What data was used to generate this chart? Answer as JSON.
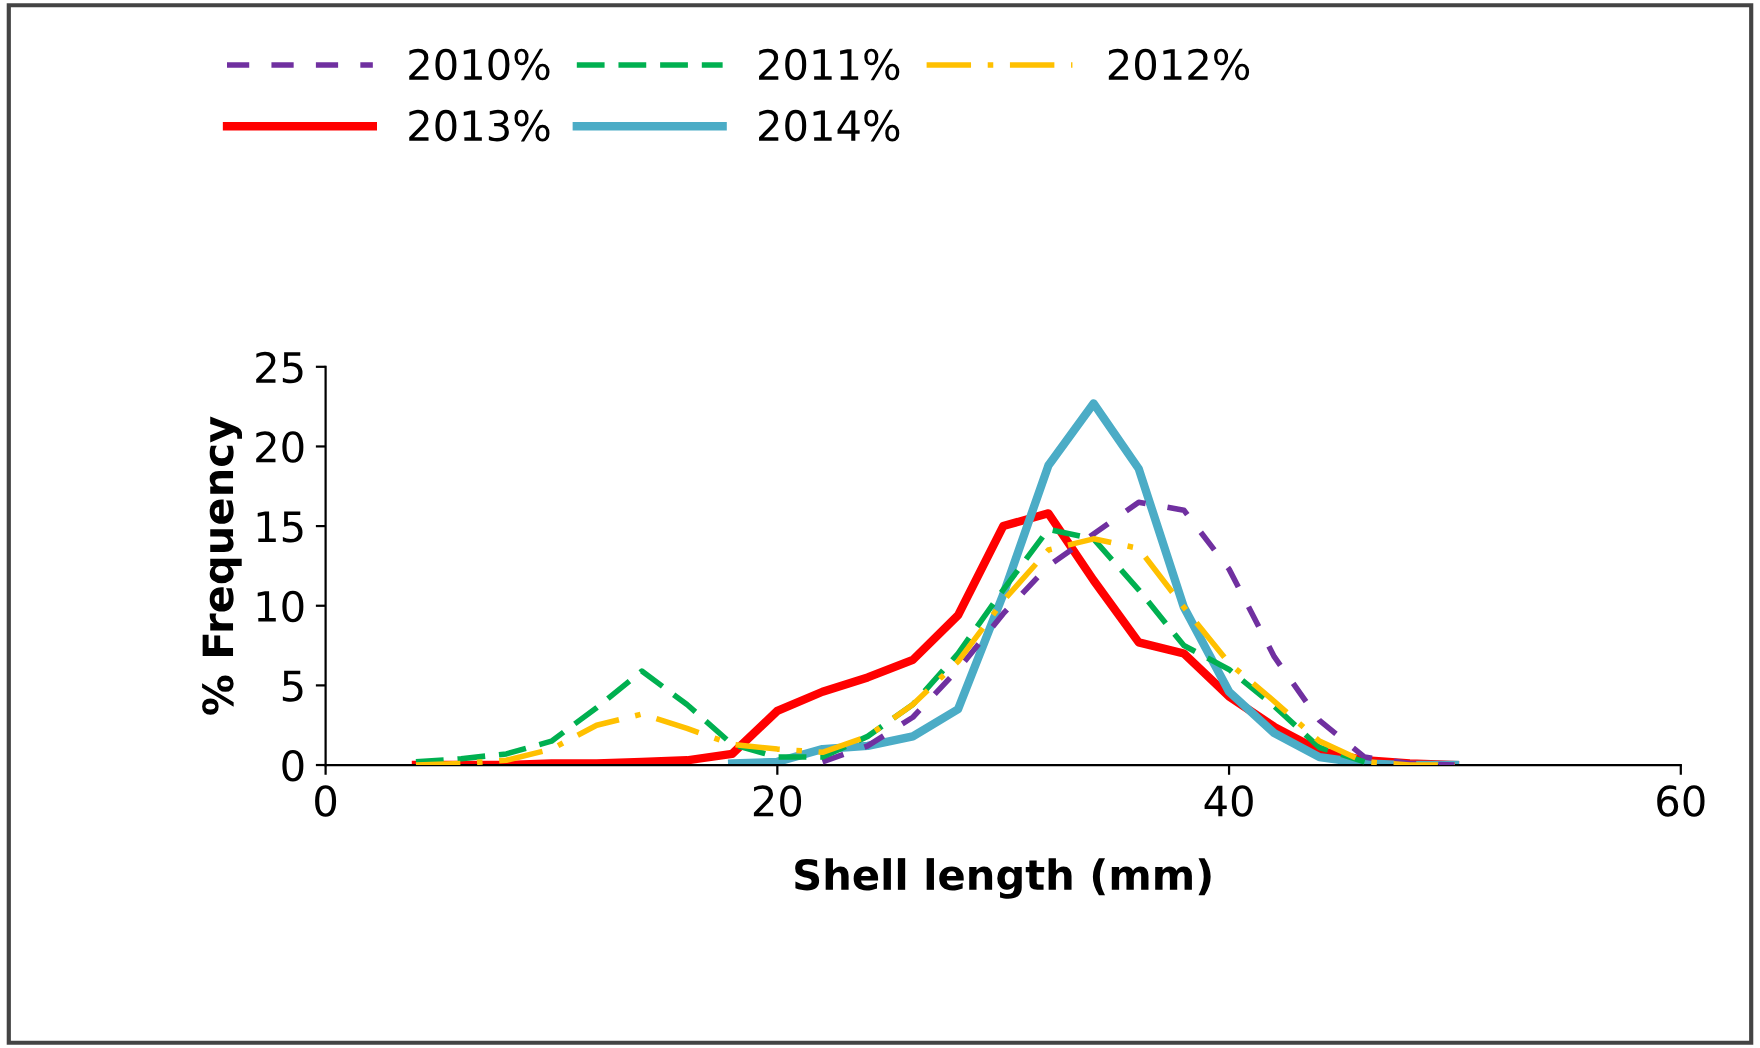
{
  "chart_data": {
    "type": "line",
    "xlabel": "Shell length (mm)",
    "ylabel": "% Frequency",
    "x": [
      4,
      6,
      8,
      10,
      12,
      14,
      16,
      18,
      20,
      22,
      24,
      26,
      28,
      30,
      32,
      34,
      36,
      38,
      40,
      42,
      44,
      46,
      48,
      50
    ],
    "series": [
      {
        "name": "2010%",
        "color": "#7030a0",
        "line_style": "dashed",
        "values": [
          null,
          null,
          null,
          null,
          null,
          null,
          null,
          null,
          null,
          0.2,
          1.2,
          3,
          6,
          9.5,
          12.5,
          14.5,
          16.5,
          16,
          12.3,
          6.8,
          2.8,
          0.5,
          0.1,
          0
        ]
      },
      {
        "name": "2011%",
        "color": "#00b050",
        "line_style": "longdash",
        "values": [
          0.2,
          0.4,
          0.7,
          1.5,
          3.6,
          5.9,
          3.8,
          1.3,
          0.5,
          0.5,
          1.8,
          3.8,
          7,
          11,
          14.8,
          14.2,
          11,
          7.5,
          6,
          3.7,
          1.1,
          0.2,
          null,
          null
        ]
      },
      {
        "name": "2012%",
        "color": "#ffc000",
        "line_style": "dashdot",
        "values": [
          0,
          0.1,
          0.3,
          1,
          2.5,
          3.2,
          2.3,
          1.3,
          1,
          0.8,
          1.8,
          3.8,
          6.5,
          10.3,
          13.5,
          14.2,
          13.6,
          9.9,
          6.4,
          4,
          1.5,
          0.2,
          0,
          0
        ]
      },
      {
        "name": "2013%",
        "color": "#ff0000",
        "line_style": "solid",
        "values": [
          0,
          0,
          0,
          0.1,
          0.1,
          0.2,
          0.3,
          0.7,
          3.4,
          4.6,
          5.5,
          6.6,
          9.4,
          15,
          15.8,
          11.6,
          7.7,
          7,
          4.3,
          2.4,
          0.9,
          0.3,
          0.1,
          0
        ]
      },
      {
        "name": "2014%",
        "color": "#4bacc6",
        "line_style": "solid",
        "values": [
          null,
          null,
          null,
          null,
          null,
          null,
          null,
          0.1,
          0.2,
          1,
          1.2,
          1.8,
          3.5,
          10.7,
          18.8,
          22.7,
          18.6,
          9.9,
          4.6,
          2,
          0.5,
          0.1,
          0,
          0
        ]
      }
    ],
    "xlim": [
      0,
      60
    ],
    "xticks": [
      0,
      20,
      40,
      60
    ],
    "ylim": [
      0,
      25
    ],
    "yticks": [
      0,
      5,
      10,
      15,
      20,
      25
    ],
    "grid": false,
    "legend": "top",
    "marker": "none"
  }
}
